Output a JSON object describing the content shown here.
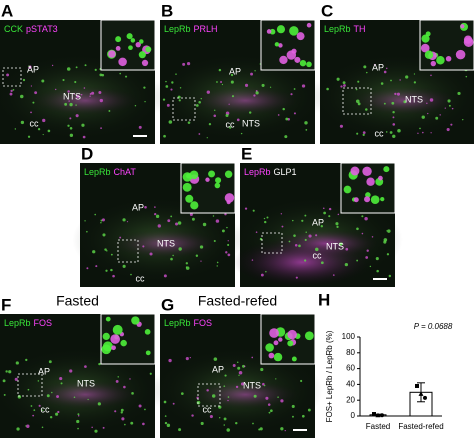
{
  "panels": [
    {
      "letter": "A",
      "channels": [
        {
          "text": "CCK",
          "color": "#39e639"
        },
        {
          "text": "pSTAT3",
          "color": "#ff44ff"
        }
      ],
      "regions": [
        "AP",
        "NTS",
        "cc"
      ]
    },
    {
      "letter": "B",
      "channels": [
        {
          "text": "LepRb",
          "color": "#39e639"
        },
        {
          "text": "PRLH",
          "color": "#ff44ff"
        }
      ],
      "regions": [
        "AP",
        "NTS",
        "cc"
      ]
    },
    {
      "letter": "C",
      "channels": [
        {
          "text": "LepRb",
          "color": "#39e639"
        },
        {
          "text": "TH",
          "color": "#ff44ff"
        }
      ],
      "regions": [
        "AP",
        "NTS",
        "cc"
      ]
    },
    {
      "letter": "D",
      "channels": [
        {
          "text": "LepRb",
          "color": "#39e639"
        },
        {
          "text": "ChAT",
          "color": "#ff44ff"
        }
      ],
      "regions": [
        "AP",
        "NTS",
        "cc"
      ]
    },
    {
      "letter": "E",
      "channels": [
        {
          "text": "LepRb",
          "color": "#ff44ff"
        },
        {
          "text": "GLP1",
          "color": "#ffffff"
        }
      ],
      "regions": [
        "AP",
        "NTS",
        "cc"
      ]
    },
    {
      "letter": "F",
      "title": "Fasted",
      "channels": [
        {
          "text": "LepRb",
          "color": "#39e639"
        },
        {
          "text": "FOS",
          "color": "#ff44ff"
        }
      ],
      "regions": [
        "AP",
        "NTS",
        "cc"
      ]
    },
    {
      "letter": "G",
      "title": "Fasted-refed",
      "channels": [
        {
          "text": "LepRb",
          "color": "#39e639"
        },
        {
          "text": "FOS",
          "color": "#ff44ff"
        }
      ],
      "regions": [
        "AP",
        "NTS",
        "cc"
      ]
    }
  ],
  "chart_data": {
    "type": "bar",
    "letter": "H",
    "ylabel": "FOS+ LepRb / LepRb (%)",
    "annotation": "P = 0.0688",
    "categories": [
      "Fasted",
      "Fasted-refed"
    ],
    "values": [
      1.5,
      30
    ],
    "errors": [
      0.8,
      12
    ],
    "points": [
      [
        2.5,
        1,
        1
      ],
      [
        38,
        28,
        23
      ]
    ],
    "color": "#ffffff",
    "ylim": [
      0,
      100
    ],
    "yticks": [
      0,
      20,
      40,
      60,
      80,
      100
    ]
  }
}
